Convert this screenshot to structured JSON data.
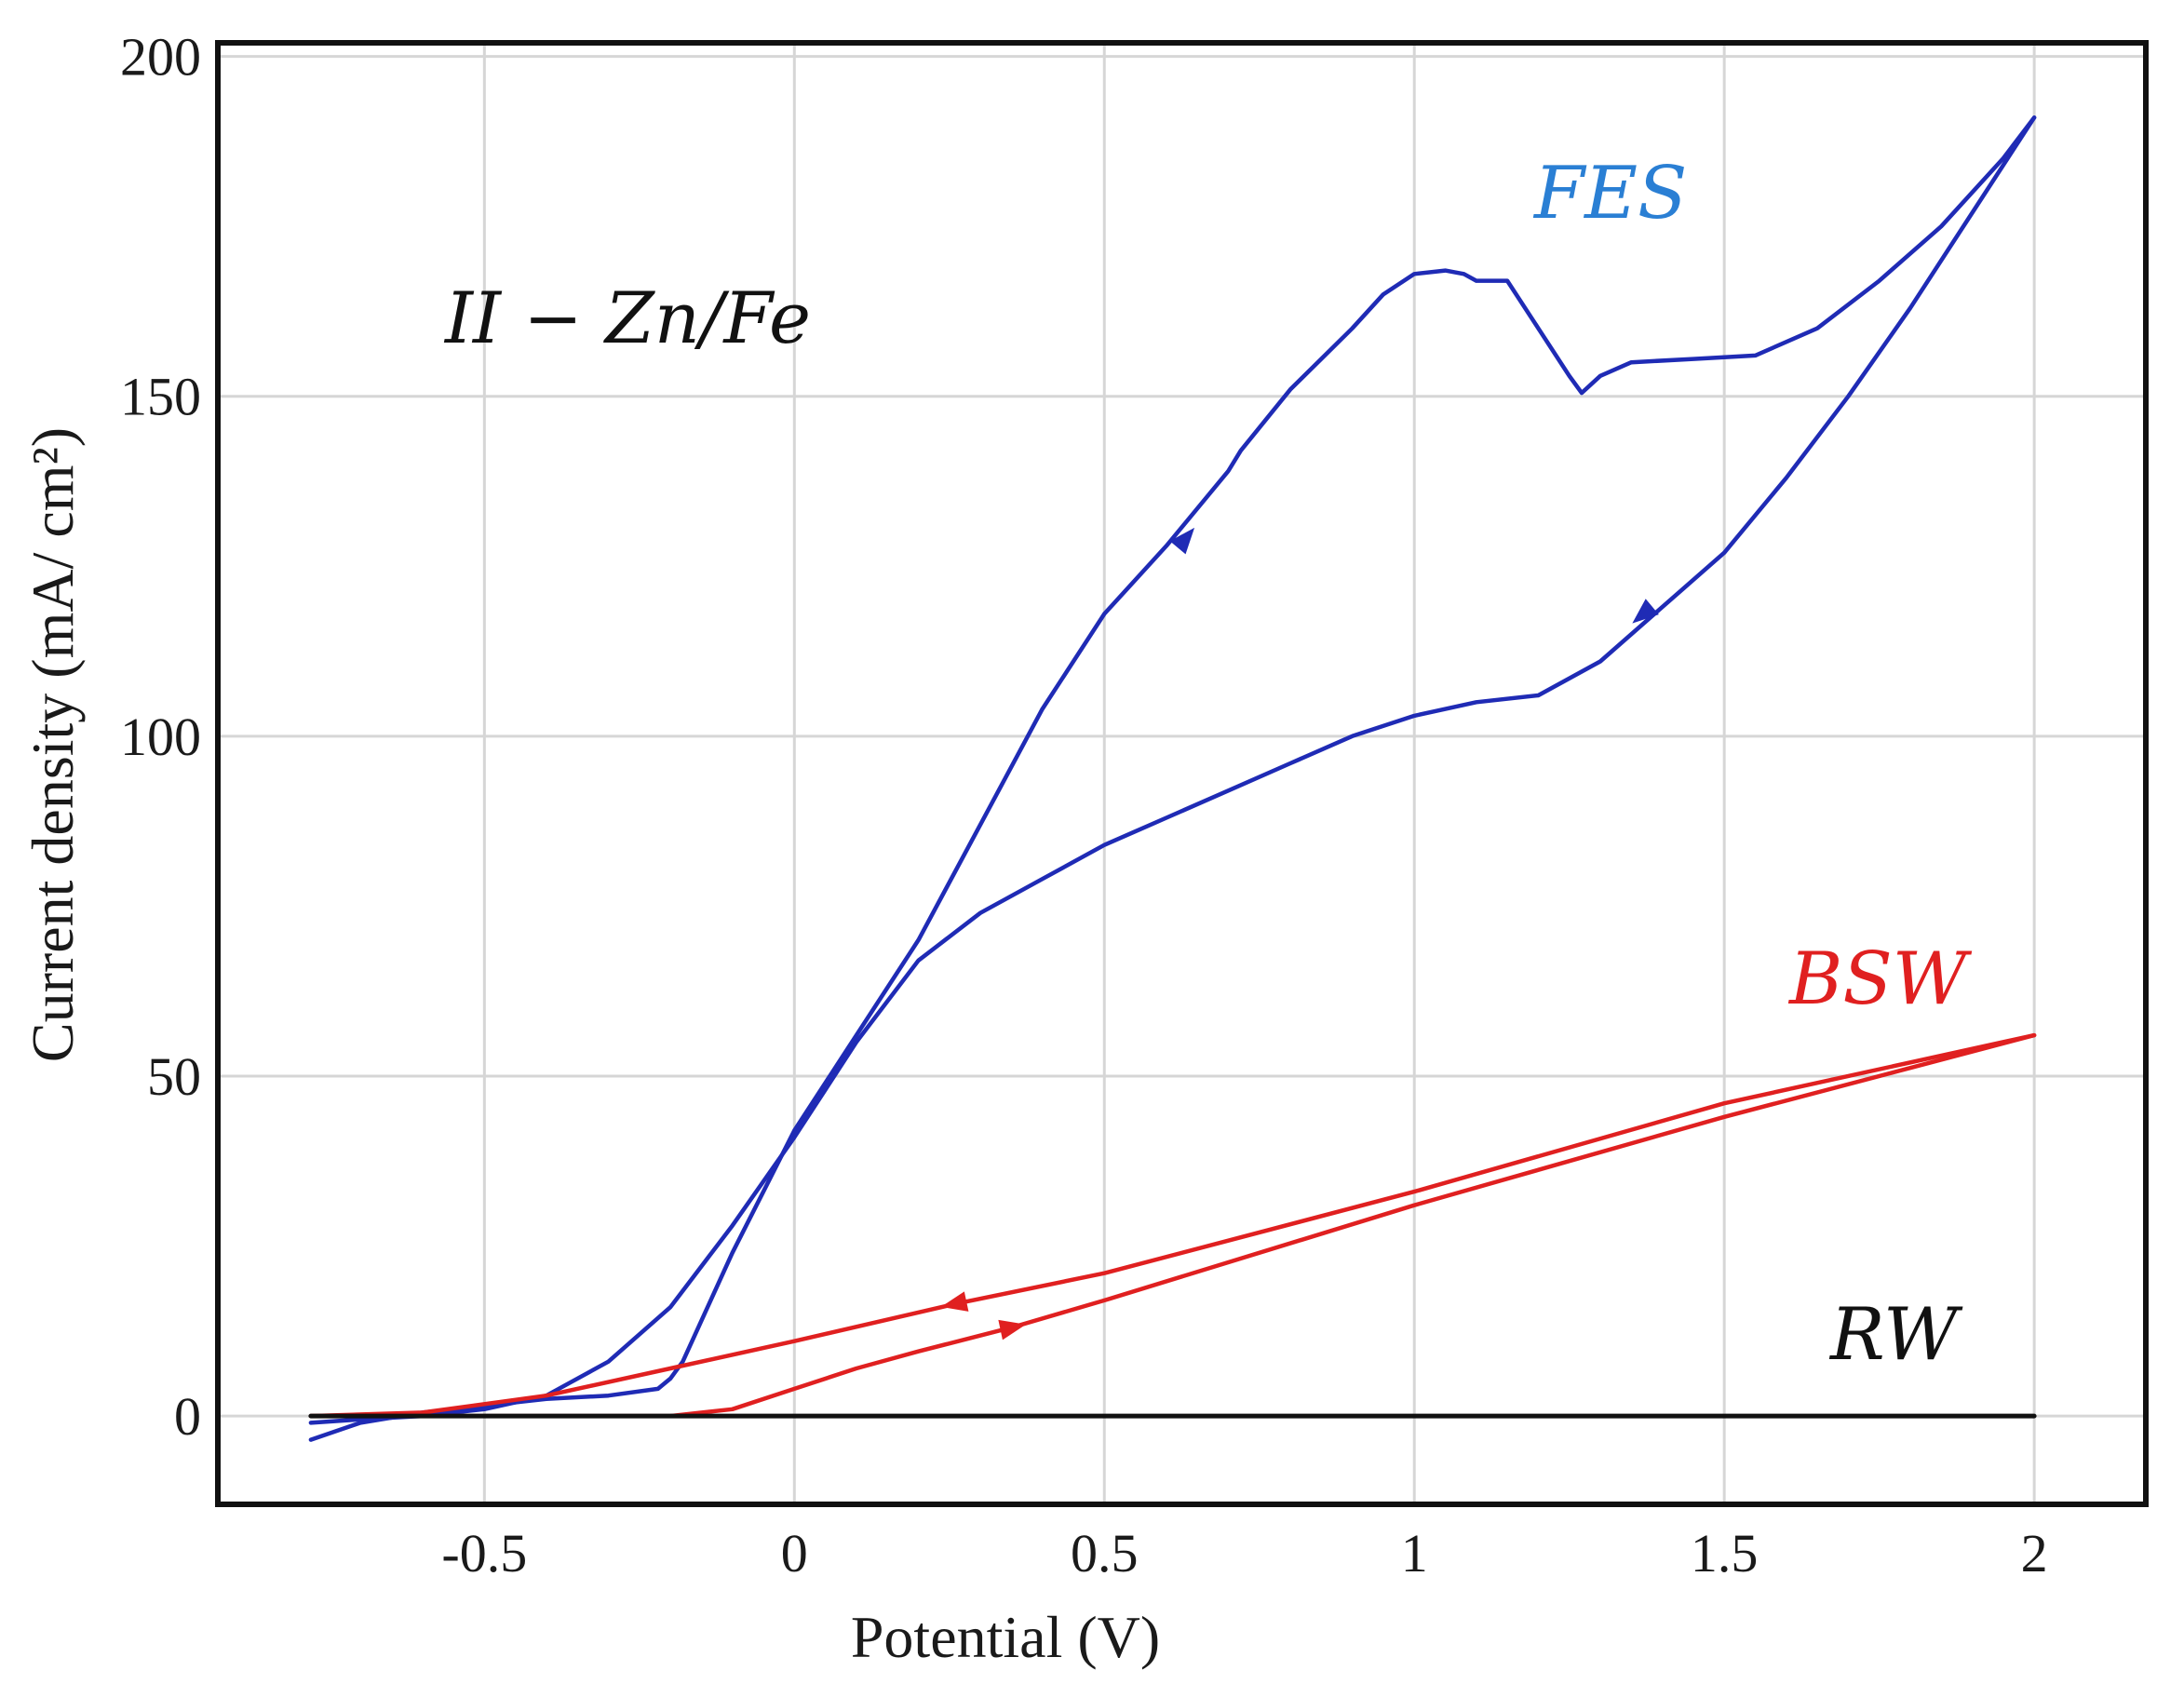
{
  "chart_data": {
    "type": "line",
    "title": "II − Zn/Fe",
    "xlabel": "Potential (V)",
    "ylabel": "Current density (mA/ cm²)",
    "xlim": [
      -0.93,
      2.18
    ],
    "ylim": [
      -13,
      202
    ],
    "x_ticks": [
      -0.5,
      0,
      0.5,
      1,
      1.5,
      2
    ],
    "x_tick_labels": [
      "-0.5",
      "0",
      "0.5",
      "1",
      "1.5",
      "2"
    ],
    "y_ticks": [
      0,
      50,
      100,
      150,
      200
    ],
    "y_tick_labels": [
      "0",
      "50",
      "100",
      "150",
      "200"
    ],
    "grid": true,
    "series": [
      {
        "name": "FES",
        "color": "#1f2bb5",
        "label_color": "#2a7fd4",
        "forward": [
          [
            -0.78,
            -3.5
          ],
          [
            -0.7,
            -1
          ],
          [
            -0.6,
            0.5
          ],
          [
            -0.5,
            1.5
          ],
          [
            -0.4,
            2.5
          ],
          [
            -0.3,
            3
          ],
          [
            -0.22,
            4
          ],
          [
            -0.2,
            5.5
          ],
          [
            -0.18,
            8
          ],
          [
            -0.15,
            14
          ],
          [
            -0.1,
            24
          ],
          [
            0,
            42
          ],
          [
            0.1,
            56
          ],
          [
            0.2,
            70
          ],
          [
            0.3,
            87
          ],
          [
            0.4,
            104
          ],
          [
            0.5,
            118
          ],
          [
            0.6,
            128
          ],
          [
            0.7,
            139
          ],
          [
            0.72,
            142
          ],
          [
            0.8,
            151
          ],
          [
            0.9,
            160
          ],
          [
            0.95,
            165
          ],
          [
            1.0,
            168
          ],
          [
            1.05,
            168.5
          ],
          [
            1.08,
            168
          ],
          [
            1.1,
            167
          ],
          [
            1.15,
            167
          ],
          [
            1.2,
            160
          ],
          [
            1.25,
            153
          ],
          [
            1.27,
            150.5
          ],
          [
            1.3,
            153
          ],
          [
            1.35,
            155
          ],
          [
            1.45,
            155.5
          ],
          [
            1.55,
            156
          ],
          [
            1.65,
            160
          ],
          [
            1.75,
            167
          ],
          [
            1.85,
            175
          ],
          [
            1.95,
            185
          ],
          [
            2.0,
            191
          ]
        ],
        "reverse": [
          [
            2.0,
            191
          ],
          [
            1.9,
            177
          ],
          [
            1.8,
            163
          ],
          [
            1.7,
            150
          ],
          [
            1.6,
            138
          ],
          [
            1.5,
            127
          ],
          [
            1.4,
            119
          ],
          [
            1.3,
            111
          ],
          [
            1.2,
            106
          ],
          [
            1.1,
            105
          ],
          [
            1.0,
            103
          ],
          [
            0.9,
            100
          ],
          [
            0.8,
            96
          ],
          [
            0.7,
            92
          ],
          [
            0.6,
            88
          ],
          [
            0.5,
            84
          ],
          [
            0.4,
            79
          ],
          [
            0.3,
            74
          ],
          [
            0.2,
            67
          ],
          [
            0.1,
            55
          ],
          [
            0.0,
            41
          ],
          [
            -0.1,
            28
          ],
          [
            -0.2,
            16
          ],
          [
            -0.3,
            8
          ],
          [
            -0.4,
            3
          ],
          [
            -0.5,
            1
          ],
          [
            -0.6,
            0
          ],
          [
            -0.7,
            -0.5
          ],
          [
            -0.78,
            -1
          ]
        ],
        "arrows": [
          [
            0.63,
            129,
            "up"
          ],
          [
            1.37,
            118,
            "down"
          ]
        ]
      },
      {
        "name": "BSW",
        "color": "#e02020",
        "label_color": "#e02020",
        "forward": [
          [
            -0.78,
            0
          ],
          [
            -0.5,
            0
          ],
          [
            -0.2,
            0
          ],
          [
            -0.1,
            1
          ],
          [
            0.0,
            4
          ],
          [
            0.1,
            7
          ],
          [
            0.2,
            9.5
          ],
          [
            0.35,
            13
          ],
          [
            0.5,
            17
          ],
          [
            1.0,
            31
          ],
          [
            1.5,
            44
          ],
          [
            2.0,
            56
          ]
        ],
        "reverse": [
          [
            2.0,
            56
          ],
          [
            1.5,
            46
          ],
          [
            1.0,
            33
          ],
          [
            0.5,
            21
          ],
          [
            0.26,
            16.5
          ],
          [
            0.0,
            11
          ],
          [
            -0.2,
            7
          ],
          [
            -0.4,
            3
          ],
          [
            -0.6,
            0.5
          ],
          [
            -0.78,
            0
          ]
        ],
        "arrows": [
          [
            0.35,
            13,
            "right"
          ],
          [
            0.26,
            16.5,
            "left"
          ]
        ]
      },
      {
        "name": "RW",
        "color": "#111111",
        "label_color": "#111111",
        "forward": [
          [
            -0.78,
            0
          ],
          [
            2.0,
            0
          ]
        ],
        "reverse": [],
        "arrows": []
      }
    ]
  }
}
